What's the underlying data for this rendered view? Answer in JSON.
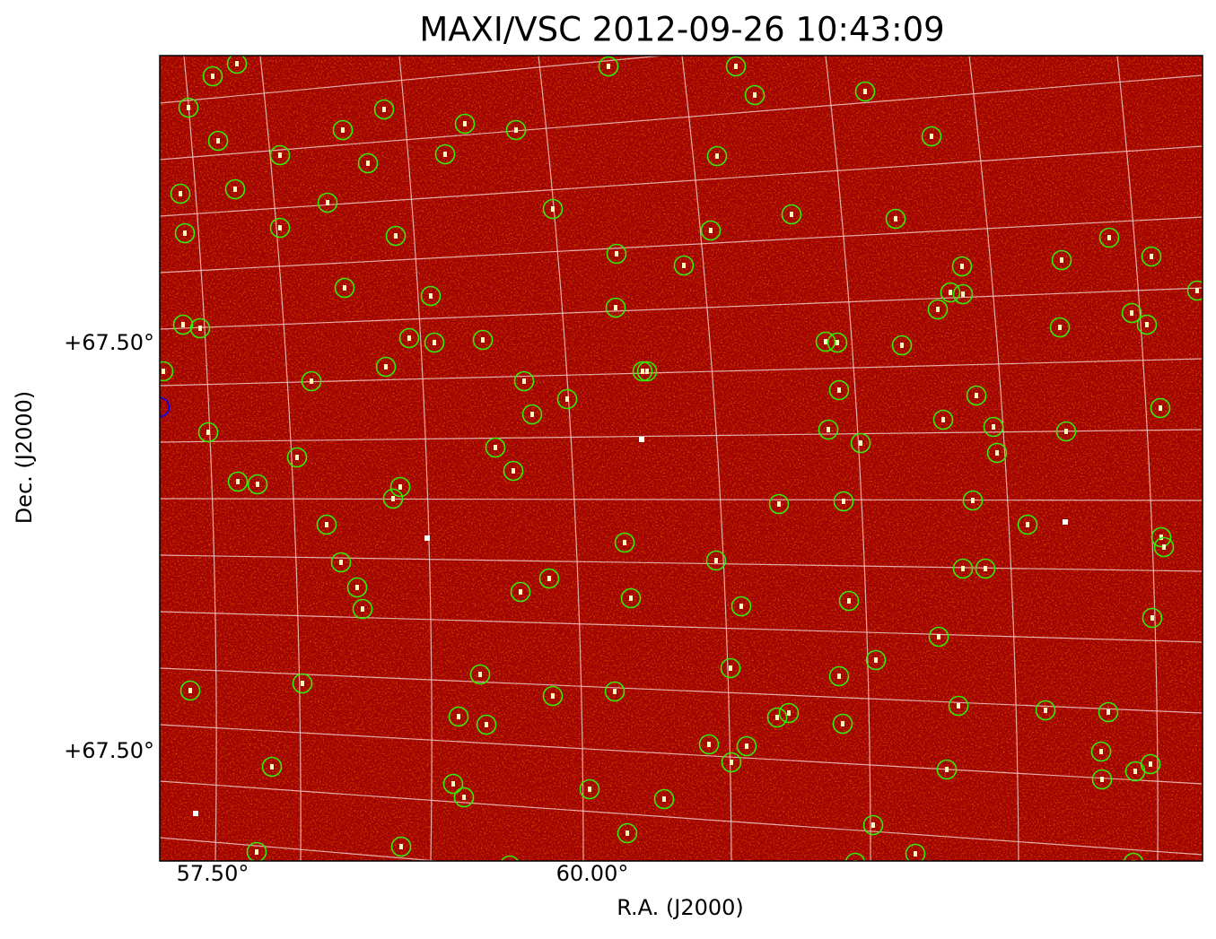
{
  "title": "MAXI/VSC 2012-09-26 10:43:09",
  "x_axis": {
    "label": "R.A. (J2000)",
    "ticks": [
      "57.50°",
      "60.00°"
    ]
  },
  "y_axis": {
    "label": "Dec. (J2000)",
    "ticks": [
      "+67.50°",
      "+67.50°"
    ]
  }
}
